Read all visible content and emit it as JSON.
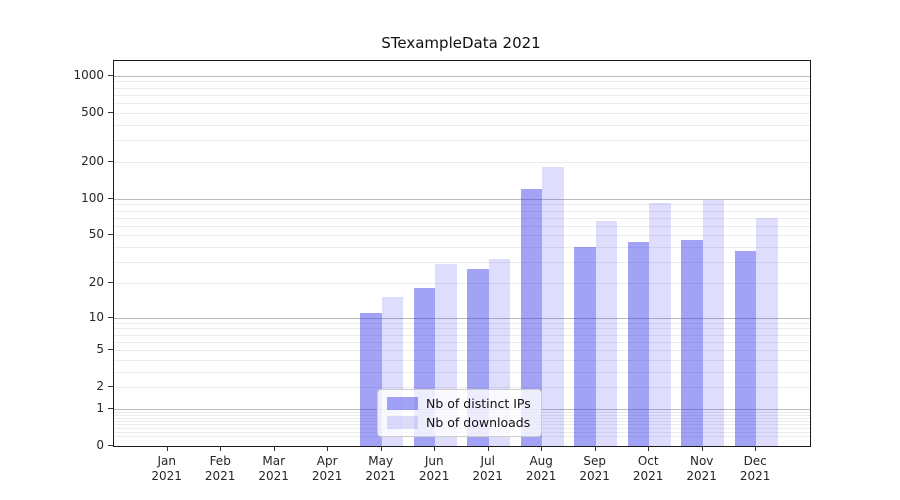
{
  "figure": {
    "background": "#ffffff"
  },
  "chart_data": {
    "type": "bar",
    "title": "STexampleData 2021",
    "categories": [
      "Jan",
      "Feb",
      "Mar",
      "Apr",
      "May",
      "Jun",
      "Jul",
      "Aug",
      "Sep",
      "Oct",
      "Nov",
      "Dec"
    ],
    "year": "2021",
    "series": [
      {
        "name": "Nb of distinct IPs",
        "color": "rgba(50,50,235,0.45)",
        "color_hex_on_white": "#a3a3f6",
        "values": [
          0,
          0,
          0,
          0,
          11,
          18,
          26,
          120,
          40,
          44,
          46,
          37
        ]
      },
      {
        "name": "Nb of downloads",
        "color": "rgba(50,50,235,0.16)",
        "color_hex_on_white": "#dedefc",
        "values": [
          0,
          0,
          0,
          0,
          15,
          29,
          32,
          180,
          66,
          92,
          97,
          69
        ]
      }
    ],
    "y_axis": {
      "scale": "log10(value+1)",
      "tick_labels": [
        "0",
        "1",
        "2",
        "5",
        "10",
        "20",
        "50",
        "100",
        "200",
        "500",
        "1000"
      ],
      "tick_values": [
        0,
        1,
        2,
        5,
        10,
        20,
        50,
        100,
        200,
        500,
        1000
      ],
      "top_value": 1318
    },
    "x_axis": {
      "tick_label_format": "Month newline Year"
    },
    "grid": {
      "major_values": [
        1,
        10,
        100,
        1000
      ],
      "minor_multipliers": [
        2,
        3,
        4,
        5,
        6,
        7,
        8,
        9
      ],
      "minor_decades": [
        0.1,
        1,
        10,
        100
      ],
      "major_color": "#bbbbbb",
      "minor_color": "#ececec",
      "grid_on": true
    },
    "legend": {
      "position": "inside-bottom-center",
      "border_color": "#cccccc",
      "background": "rgba(255,255,255,0.8)"
    }
  }
}
